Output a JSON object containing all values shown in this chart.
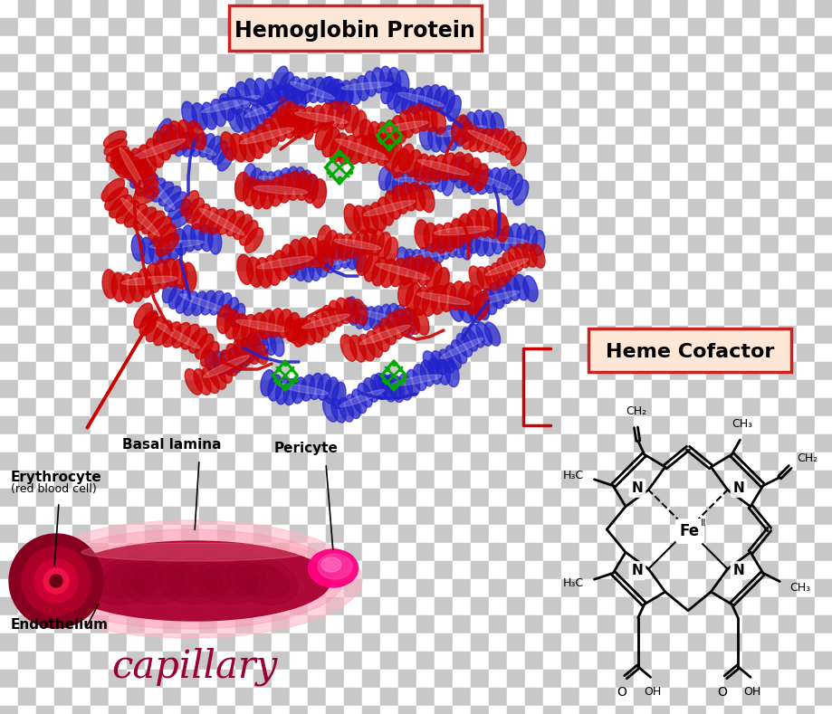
{
  "title_hemoglobin": "Hemoglobin Protein",
  "title_heme": "Heme Cofactor",
  "capillary_label": "capillary",
  "labels": {
    "erythrocyte": "Erythrocyte",
    "erythrocyte_sub": "(red blood cell)",
    "basal_lamina": "Basal lamina",
    "pericyte": "Pericyte",
    "endothelium": "Endothelium"
  },
  "bg_checker_light": "#c8c8c8",
  "bg_checker_white": "#ffffff",
  "heme_label_bg": "#fde8d8",
  "heme_label_border": "#cc2222",
  "hemoglobin_label_bg": "#fde8d8",
  "hemoglobin_label_border": "#cc2222",
  "capillary_color": "#9b0030",
  "arrow_color": "#cc0000",
  "red_helix": "#cc0000",
  "blue_helix": "#2222cc",
  "green_stick": "#00aa00"
}
